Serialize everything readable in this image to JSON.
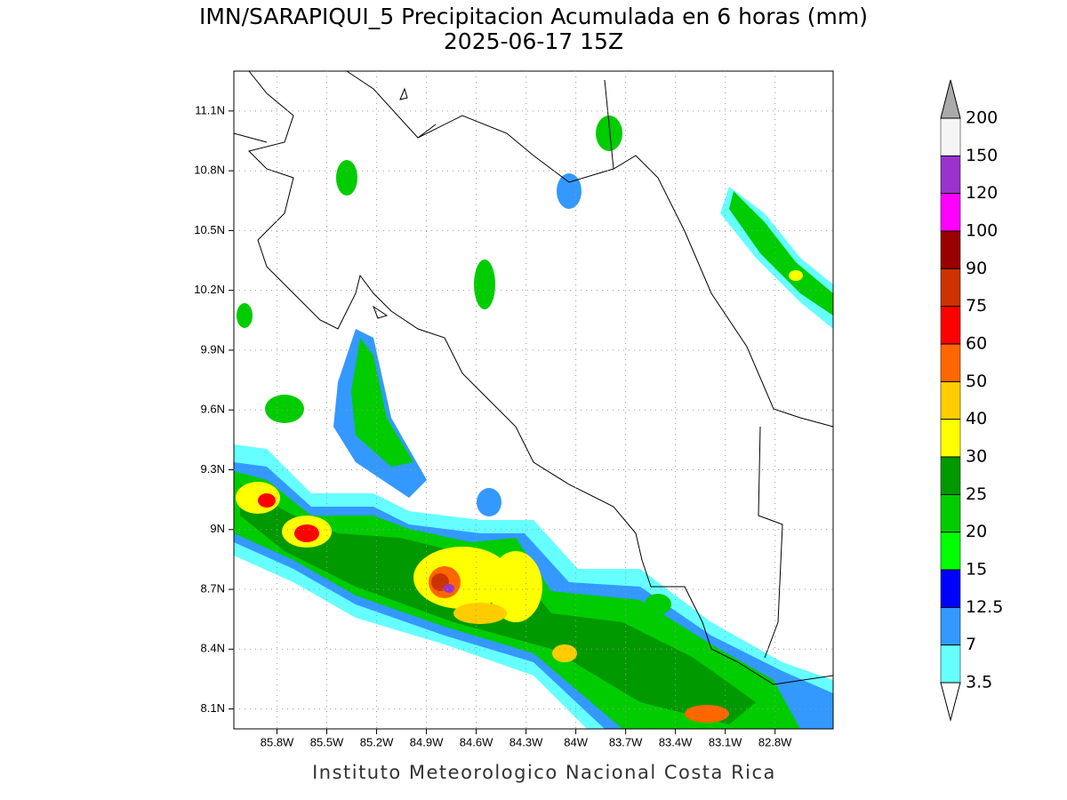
{
  "header": {
    "title": "IMN/SARAPIQUI_5 Precipitacion Acumulada en 6 horas (mm)",
    "subtitle": "2025-06-17 15Z"
  },
  "map": {
    "xlim": [
      -86.06,
      -82.45
    ],
    "ylim": [
      8.0,
      11.3
    ],
    "xticks": [
      {
        "value": -85.8,
        "label": "85.8W"
      },
      {
        "value": -85.5,
        "label": "85.5W"
      },
      {
        "value": -85.2,
        "label": "85.2W"
      },
      {
        "value": -84.9,
        "label": "84.9W"
      },
      {
        "value": -84.6,
        "label": "84.6W"
      },
      {
        "value": -84.3,
        "label": "84.3W"
      },
      {
        "value": -84,
        "label": "84W"
      },
      {
        "value": -83.7,
        "label": "83.7W"
      },
      {
        "value": -83.4,
        "label": "83.4W"
      },
      {
        "value": -83.1,
        "label": "83.1W"
      },
      {
        "value": -82.8,
        "label": "82.8W"
      }
    ],
    "yticks": [
      {
        "value": 8.1,
        "label": "8.1N"
      },
      {
        "value": 8.4,
        "label": "8.4N"
      },
      {
        "value": 8.7,
        "label": "8.7N"
      },
      {
        "value": 9,
        "label": "9N"
      },
      {
        "value": 9.3,
        "label": "9.3N"
      },
      {
        "value": 9.6,
        "label": "9.6N"
      },
      {
        "value": 9.9,
        "label": "9.9N"
      },
      {
        "value": 10.2,
        "label": "10.2N"
      },
      {
        "value": 10.5,
        "label": "10.5N"
      },
      {
        "value": 10.8,
        "label": "10.8N"
      },
      {
        "value": 11.1,
        "label": "11.1N"
      }
    ],
    "grid": true
  },
  "colorbar": {
    "levels": [
      3.5,
      7,
      12.5,
      15,
      20,
      25,
      30,
      40,
      50,
      60,
      75,
      90,
      100,
      120,
      150,
      200
    ],
    "colors": [
      "#ffffff",
      "#66ffff",
      "#3399ff",
      "#0000ff",
      "#00ff00",
      "#00cc00",
      "#009900",
      "#ffff00",
      "#ffcc00",
      "#ff6600",
      "#ff0000",
      "#cc3300",
      "#990000",
      "#ff00ff",
      "#9933cc",
      "#f5f5f5",
      "#aaaaaa"
    ]
  },
  "footer": "Instituto Meteorologico Nacional Costa Rica"
}
